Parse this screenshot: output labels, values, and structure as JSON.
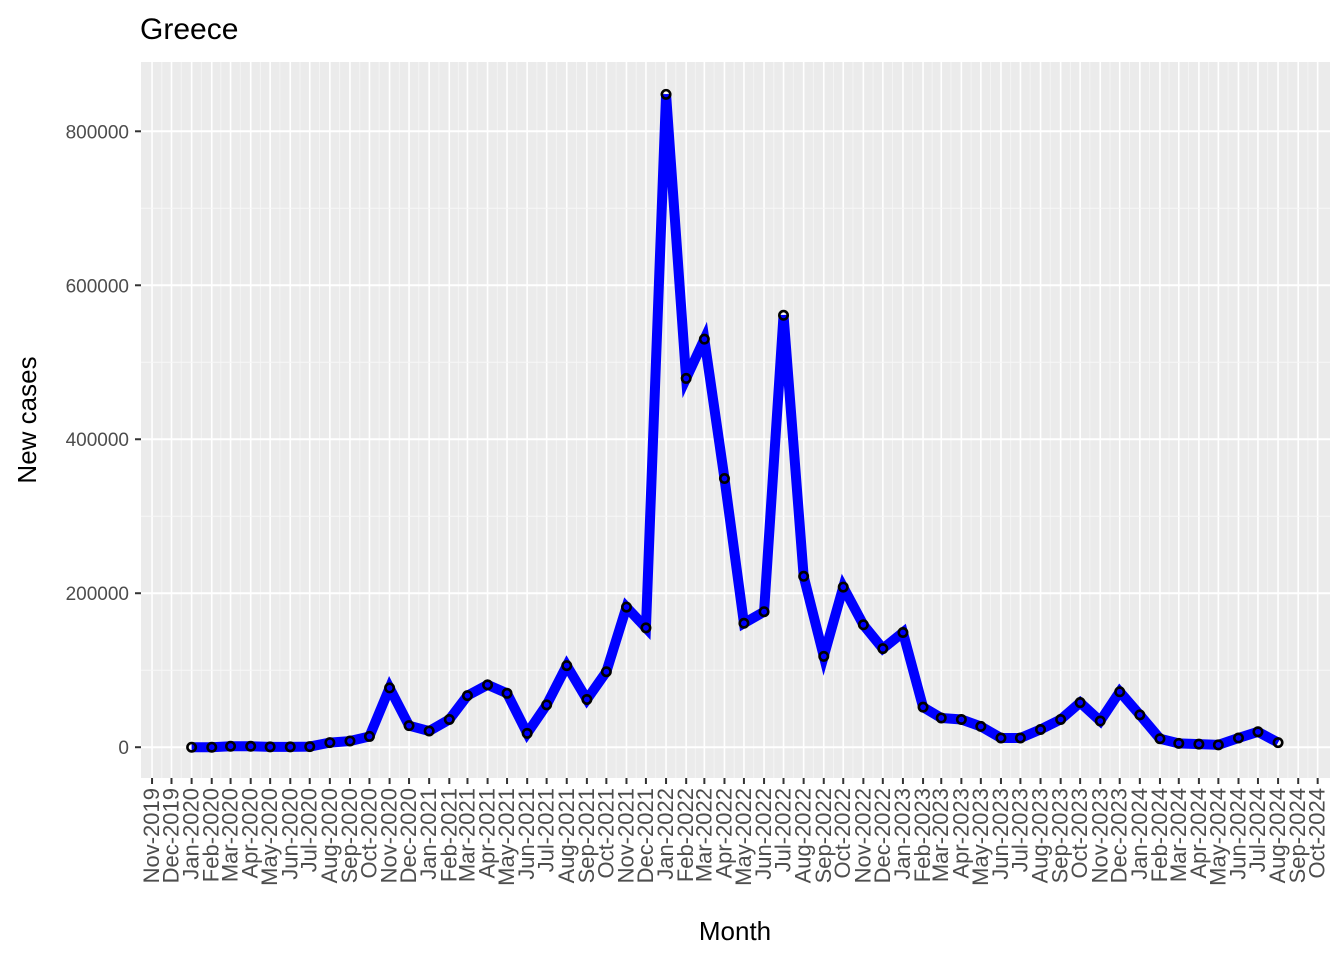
{
  "chart_data": {
    "type": "line",
    "title": "Greece",
    "xlabel": "Month",
    "ylabel": "New cases",
    "x_tick_labels": [
      "Nov-2019",
      "Dec-2019",
      "Jan-2020",
      "Feb-2020",
      "Mar-2020",
      "Apr-2020",
      "May-2020",
      "Jun-2020",
      "Jul-2020",
      "Aug-2020",
      "Sep-2020",
      "Oct-2020",
      "Nov-2020",
      "Dec-2020",
      "Jan-2021",
      "Feb-2021",
      "Mar-2021",
      "Apr-2021",
      "May-2021",
      "Jun-2021",
      "Jul-2021",
      "Aug-2021",
      "Sep-2021",
      "Oct-2021",
      "Nov-2021",
      "Dec-2021",
      "Jan-2022",
      "Feb-2022",
      "Mar-2022",
      "Apr-2022",
      "May-2022",
      "Jun-2022",
      "Jul-2022",
      "Aug-2022",
      "Sep-2022",
      "Oct-2022",
      "Nov-2022",
      "Dec-2022",
      "Jan-2023",
      "Feb-2023",
      "Mar-2023",
      "Apr-2023",
      "May-2023",
      "Jun-2023",
      "Jul-2023",
      "Aug-2023",
      "Sep-2023",
      "Oct-2023",
      "Nov-2023",
      "Dec-2023",
      "Jan-2024",
      "Feb-2024",
      "Mar-2024",
      "Apr-2024",
      "May-2024",
      "Jun-2024",
      "Jul-2024",
      "Aug-2024",
      "Sep-2024",
      "Oct-2024"
    ],
    "y_ticks": [
      0,
      200000,
      400000,
      600000,
      800000
    ],
    "y_tick_labels": [
      "0",
      "200000",
      "400000",
      "600000",
      "800000"
    ],
    "ylim": [
      -40000,
      890000
    ],
    "x_range": [
      "2019-10-15",
      "2024-10-20"
    ],
    "grid": true,
    "legend": "none",
    "series": [
      {
        "color": "#0000ff",
        "points": [
          {
            "x": "2020-01-01",
            "y": 0
          },
          {
            "x": "2020-02-01",
            "y": 0
          },
          {
            "x": "2020-03-01",
            "y": 1300
          },
          {
            "x": "2020-04-01",
            "y": 1200
          },
          {
            "x": "2020-05-01",
            "y": 500
          },
          {
            "x": "2020-06-01",
            "y": 500
          },
          {
            "x": "2020-07-01",
            "y": 800
          },
          {
            "x": "2020-08-01",
            "y": 6000
          },
          {
            "x": "2020-09-01",
            "y": 8000
          },
          {
            "x": "2020-10-01",
            "y": 14000
          },
          {
            "x": "2020-11-01",
            "y": 77000
          },
          {
            "x": "2020-12-01",
            "y": 28000
          },
          {
            "x": "2021-01-01",
            "y": 21000
          },
          {
            "x": "2021-02-01",
            "y": 36000
          },
          {
            "x": "2021-03-01",
            "y": 67000
          },
          {
            "x": "2021-04-01",
            "y": 81000
          },
          {
            "x": "2021-05-01",
            "y": 70000
          },
          {
            "x": "2021-06-01",
            "y": 18000
          },
          {
            "x": "2021-07-01",
            "y": 55000
          },
          {
            "x": "2021-08-01",
            "y": 106000
          },
          {
            "x": "2021-09-01",
            "y": 62000
          },
          {
            "x": "2021-10-01",
            "y": 98000
          },
          {
            "x": "2021-11-01",
            "y": 182000
          },
          {
            "x": "2021-12-01",
            "y": 155000
          },
          {
            "x": "2022-01-01",
            "y": 848000
          },
          {
            "x": "2022-02-01",
            "y": 479000
          },
          {
            "x": "2022-03-01",
            "y": 530000
          },
          {
            "x": "2022-04-01",
            "y": 349000
          },
          {
            "x": "2022-05-01",
            "y": 161000
          },
          {
            "x": "2022-06-01",
            "y": 176000
          },
          {
            "x": "2022-07-01",
            "y": 561000
          },
          {
            "x": "2022-08-01",
            "y": 222000
          },
          {
            "x": "2022-09-01",
            "y": 118000
          },
          {
            "x": "2022-10-01",
            "y": 208000
          },
          {
            "x": "2022-11-01",
            "y": 159000
          },
          {
            "x": "2022-12-01",
            "y": 128000
          },
          {
            "x": "2023-01-01",
            "y": 149000
          },
          {
            "x": "2023-02-01",
            "y": 52000
          },
          {
            "x": "2023-03-01",
            "y": 38000
          },
          {
            "x": "2023-04-01",
            "y": 36000
          },
          {
            "x": "2023-05-01",
            "y": 27000
          },
          {
            "x": "2023-06-01",
            "y": 12000
          },
          {
            "x": "2023-07-01",
            "y": 12000
          },
          {
            "x": "2023-08-01",
            "y": 23000
          },
          {
            "x": "2023-09-01",
            "y": 36000
          },
          {
            "x": "2023-10-01",
            "y": 58000
          },
          {
            "x": "2023-11-01",
            "y": 34000
          },
          {
            "x": "2023-12-01",
            "y": 72000
          },
          {
            "x": "2024-01-01",
            "y": 42000
          },
          {
            "x": "2024-02-01",
            "y": 11000
          },
          {
            "x": "2024-03-01",
            "y": 5000
          },
          {
            "x": "2024-04-01",
            "y": 4000
          },
          {
            "x": "2024-05-01",
            "y": 3000
          },
          {
            "x": "2024-06-01",
            "y": 12000
          },
          {
            "x": "2024-07-01",
            "y": 20000
          },
          {
            "x": "2024-08-01",
            "y": 6000
          }
        ]
      }
    ]
  }
}
